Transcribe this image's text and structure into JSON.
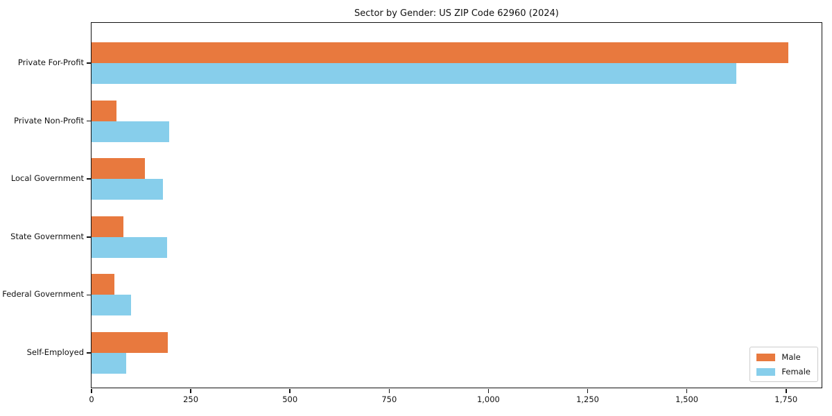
{
  "chart_data": {
    "type": "bar",
    "orientation": "horizontal",
    "title": "Sector by Gender: US ZIP Code 62960 (2024)",
    "categories": [
      "Private For-Profit",
      "Private Non-Profit",
      "Local Government",
      "State Government",
      "Federal Government",
      "Self-Employed"
    ],
    "series": [
      {
        "name": "Male",
        "color": "#e8793e",
        "values": [
          1755,
          63,
          135,
          80,
          58,
          193
        ]
      },
      {
        "name": "Female",
        "color": "#87ceeb",
        "values": [
          1625,
          195,
          180,
          190,
          100,
          87
        ]
      }
    ],
    "xlabel": "",
    "ylabel": "",
    "xlim": [
      0,
      1843
    ],
    "x_ticks": [
      {
        "value": 0,
        "label": "0"
      },
      {
        "value": 250,
        "label": "250"
      },
      {
        "value": 500,
        "label": "500"
      },
      {
        "value": 750,
        "label": "750"
      },
      {
        "value": 1000,
        "label": "1,000"
      },
      {
        "value": 1250,
        "label": "1,250"
      },
      {
        "value": 1500,
        "label": "1,500"
      },
      {
        "value": 1750,
        "label": "1,750"
      }
    ],
    "grid": false,
    "legend_position": "lower right"
  },
  "colors": {
    "male": "#e8793e",
    "female": "#87ceeb",
    "axis": "#111111",
    "legend_border": "#cccccc",
    "background": "#ffffff"
  }
}
